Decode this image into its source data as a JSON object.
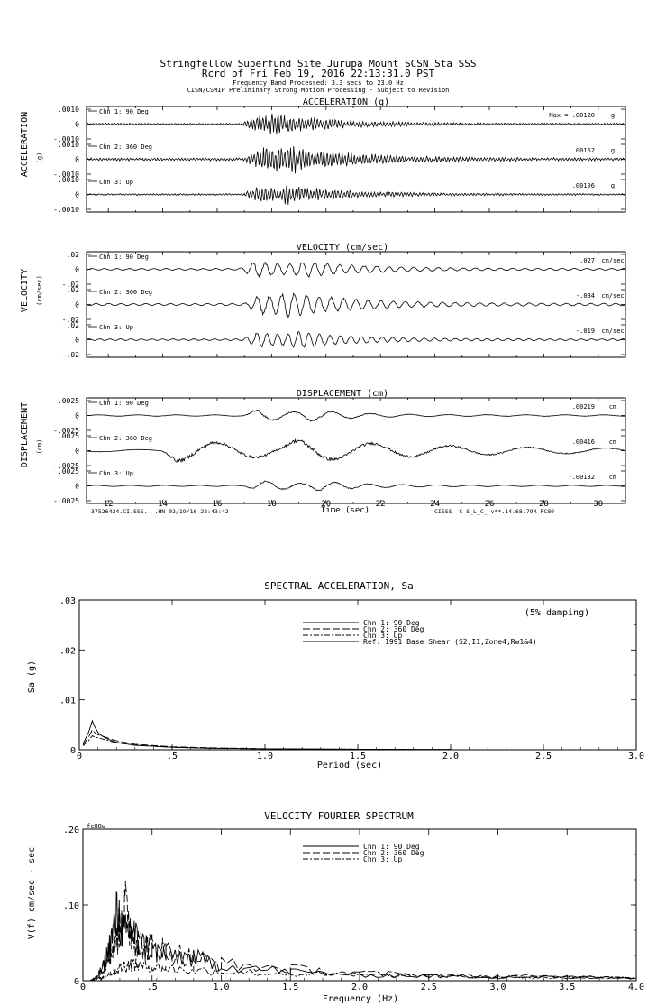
{
  "header": {
    "line1": "Stringfellow Superfund Site Jurupa Mount    SCSN Sta SSS",
    "line2": "Rcrd of Fri Feb 19, 2016 22:13:31.0 PST",
    "line3": "Frequency Band Processed: 3.3 secs to 23.0 Hz",
    "line4": "CISN/CSMIP Preliminary Strong Motion Processing - Subject to Revision"
  },
  "time_series": {
    "xlabel": "Time (sec)",
    "x_ticks": [
      "12",
      "14",
      "16",
      "18",
      "20",
      "22",
      "24",
      "26",
      "28",
      "30"
    ],
    "xlim": [
      11.2,
      31.0
    ],
    "footer_left": "37526424.CI.SSS.--.HN 02/19/16 22:43:42",
    "footer_right": "CISSS--C  S_L_C_  v**.14.68.79R PC89",
    "panels": [
      {
        "id": "acc",
        "title": "ACCELERATION (g)",
        "side_label": "ACCELERATION",
        "unit_label": "(g)",
        "unit": "g",
        "max_prefix": "Max =",
        "channels": [
          {
            "name": "Chn 1: 90 Deg",
            "peak": ".00120",
            "tick_top": ".0010",
            "tick_mid": "0",
            "tick_bot": "-.0010",
            "amp": 0.38,
            "freq": 9,
            "decay": 2.2,
            "events": [
              17.5,
              18.0
            ]
          },
          {
            "name": "Chn 2: 360 Deg",
            "peak": ".00162",
            "tick_top": ".0010",
            "tick_mid": "0",
            "tick_bot": "-.0010",
            "amp": 0.55,
            "freq": 9,
            "decay": 2.5,
            "events": [
              17.6,
              18.2
            ]
          },
          {
            "name": "Chn 3: Up",
            "peak": ".00106",
            "tick_top": ".0010",
            "tick_mid": "0",
            "tick_bot": "-.0010",
            "amp": 0.35,
            "freq": 9,
            "decay": 2.2,
            "events": [
              17.5,
              18.6
            ]
          }
        ]
      },
      {
        "id": "vel",
        "title": "VELOCITY (cm/sec)",
        "side_label": "VELOCITY",
        "unit_label": "(cm/sec)",
        "unit": "cm/sec",
        "max_prefix": "",
        "channels": [
          {
            "name": "Chn 1: 90 Deg",
            "peak": ".027",
            "tick_top": ".02",
            "tick_mid": "0",
            "tick_bot": "-.02",
            "amp": 0.42,
            "freq": 2.2,
            "decay": 2.4,
            "events": [
              17.4,
              19.2
            ]
          },
          {
            "name": "Chn 2: 360 Deg",
            "peak": "-.034",
            "tick_top": ".02",
            "tick_mid": "0",
            "tick_bot": "-.02",
            "amp": 0.55,
            "freq": 2.2,
            "decay": 2.6,
            "events": [
              17.6,
              18.6
            ]
          },
          {
            "name": "Chn 3: Up",
            "peak": "-.019",
            "tick_top": ".02",
            "tick_mid": "0",
            "tick_bot": "-.02",
            "amp": 0.42,
            "freq": 2.6,
            "decay": 2.2,
            "events": [
              17.5,
              19.0
            ]
          }
        ]
      },
      {
        "id": "disp",
        "title": "DISPLACEMENT (cm)",
        "side_label": "DISPLACEMENT",
        "unit_label": "(cm)",
        "unit": "cm",
        "max_prefix": "",
        "channels": [
          {
            "name": "Chn 1: 90 Deg",
            "peak": ".00219",
            "tick_top": ".0025",
            "tick_mid": "0",
            "tick_bot": "-.0025",
            "amp": 0.35,
            "freq": 0.7,
            "decay": 1.8,
            "events": [
              17.5,
              19.3
            ]
          },
          {
            "name": "Chn 2: 360 Deg",
            "peak": ".00416",
            "tick_top": ".0025",
            "tick_mid": "0",
            "tick_bot": "-.0025",
            "amp": 0.6,
            "freq": 0.35,
            "decay": 6.0,
            "events": [
              14.5,
              19.0
            ]
          },
          {
            "name": "Chn 3: Up",
            "peak": "-.00132",
            "tick_top": ".0025",
            "tick_mid": "0",
            "tick_bot": "-.0025",
            "amp": 0.3,
            "freq": 0.8,
            "decay": 1.8,
            "events": [
              17.6,
              19.8
            ]
          }
        ]
      }
    ]
  },
  "chart_data": [
    {
      "type": "line",
      "title": "SPECTRAL ACCELERATION, Sa",
      "note": "(5% damping)",
      "xlabel": "Period (sec)",
      "ylabel": "Sa (g)",
      "xlim": [
        0,
        3.0
      ],
      "ylim": [
        0,
        0.03
      ],
      "x_ticks": [
        "0",
        ".5",
        "1.0",
        "1.5",
        "2.0",
        "2.5",
        "3.0"
      ],
      "y_ticks": [
        "0",
        ".01",
        ".02",
        ".03"
      ],
      "legend": [
        "Chn 1: 90 Deg",
        "Chn 2: 360 Deg",
        "Chn 3: Up",
        "Ref: 1991 Base Shear (S2,I1,Zone4,Rw1&4)"
      ],
      "series": [
        {
          "name": "Chn 1: 90 Deg",
          "x": [
            0.02,
            0.05,
            0.07,
            0.08,
            0.1,
            0.12,
            0.15,
            0.2,
            0.3,
            0.5,
            0.7,
            1.0,
            1.5,
            2.0
          ],
          "values": [
            0.0012,
            0.0035,
            0.0058,
            0.0048,
            0.0035,
            0.0028,
            0.0022,
            0.0015,
            0.0009,
            0.0005,
            0.0003,
            0.0002,
            0.0001,
            5e-05
          ]
        },
        {
          "name": "Chn 2: 360 Deg",
          "x": [
            0.02,
            0.05,
            0.07,
            0.08,
            0.1,
            0.12,
            0.15,
            0.2,
            0.3,
            0.5,
            0.7,
            1.0,
            1.5,
            2.0
          ],
          "values": [
            0.001,
            0.0025,
            0.004,
            0.0035,
            0.003,
            0.0028,
            0.0024,
            0.0018,
            0.0011,
            0.0006,
            0.0004,
            0.0002,
            0.0001,
            5e-05
          ]
        },
        {
          "name": "Chn 3: Up",
          "x": [
            0.02,
            0.05,
            0.07,
            0.08,
            0.1,
            0.12,
            0.15,
            0.2,
            0.3,
            0.5,
            0.7,
            1.0,
            1.5,
            2.0
          ],
          "values": [
            0.0008,
            0.0018,
            0.0028,
            0.0026,
            0.0024,
            0.0022,
            0.0019,
            0.0014,
            0.0009,
            0.0005,
            0.0003,
            0.0002,
            0.0001,
            5e-05
          ]
        }
      ]
    },
    {
      "type": "line",
      "title": "VELOCITY FOURIER SPECTRUM",
      "corner_label": "fcH8w",
      "xlabel": "Frequency (Hz)",
      "ylabel": "V(f)   cm/sec - sec",
      "xlim": [
        0,
        4.0
      ],
      "ylim": [
        0,
        0.2
      ],
      "x_ticks": [
        "0",
        ".5",
        "1.0",
        "1.5",
        "2.0",
        "2.5",
        "3.0",
        "3.5",
        "4.0"
      ],
      "y_ticks": [
        "0",
        ".10",
        ".20"
      ],
      "legend": [
        "Chn 1: 90 Deg",
        "Chn 2: 360 Deg",
        "Chn 3: Up"
      ],
      "series": [
        {
          "name": "Chn 1: 90 Deg",
          "x": [
            0.05,
            0.1,
            0.15,
            0.2,
            0.25,
            0.3,
            0.35,
            0.4,
            0.5,
            0.6,
            0.8,
            1.0,
            1.5,
            2.0,
            2.5,
            3.0,
            3.5,
            4.0
          ],
          "values": [
            0.0,
            0.005,
            0.02,
            0.05,
            0.09,
            0.06,
            0.07,
            0.05,
            0.04,
            0.035,
            0.03,
            0.02,
            0.012,
            0.008,
            0.006,
            0.005,
            0.005,
            0.004
          ]
        },
        {
          "name": "Chn 2: 360 Deg",
          "x": [
            0.05,
            0.1,
            0.15,
            0.2,
            0.25,
            0.3,
            0.35,
            0.4,
            0.5,
            0.6,
            0.8,
            1.0,
            1.5,
            2.0,
            2.5,
            3.0,
            3.5,
            4.0
          ],
          "values": [
            0.0,
            0.004,
            0.015,
            0.035,
            0.06,
            0.1,
            0.065,
            0.05,
            0.045,
            0.04,
            0.03,
            0.022,
            0.015,
            0.01,
            0.007,
            0.006,
            0.005,
            0.004
          ]
        },
        {
          "name": "Chn 3: Up",
          "x": [
            0.05,
            0.1,
            0.15,
            0.2,
            0.25,
            0.3,
            0.35,
            0.4,
            0.5,
            0.6,
            0.8,
            1.0,
            1.5,
            2.0,
            2.5,
            3.0,
            3.5,
            4.0
          ],
          "values": [
            0.0,
            0.002,
            0.005,
            0.01,
            0.015,
            0.02,
            0.022,
            0.02,
            0.018,
            0.016,
            0.014,
            0.012,
            0.009,
            0.007,
            0.006,
            0.005,
            0.004,
            0.004
          ]
        }
      ]
    }
  ]
}
